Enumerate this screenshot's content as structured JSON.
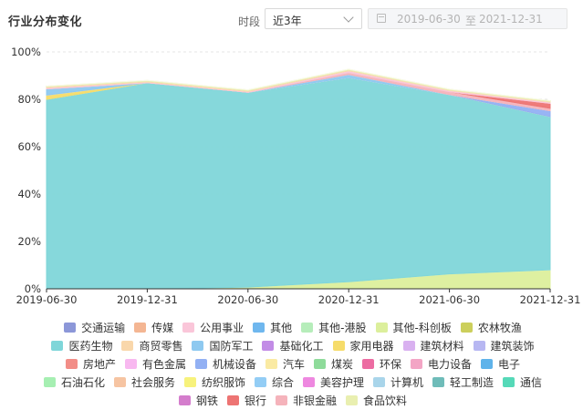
{
  "header": {
    "title": "行业分布变化",
    "period_label": "时段",
    "period_value": "近3年",
    "start_date": "2019-06-30",
    "separator": "至",
    "end_date": "2021-12-31"
  },
  "chart_data": {
    "type": "area",
    "stacked": true,
    "x": [
      "2019-06-30",
      "2019-12-31",
      "2020-06-30",
      "2020-12-31",
      "2021-06-30",
      "2021-12-31"
    ],
    "x_ticks": [
      "2019-06-30",
      "2019-12-31",
      "2020-06-30",
      "2020-12-31",
      "2021-06-30",
      "2021-12-31"
    ],
    "ylim": [
      0,
      100
    ],
    "y_ticks": [
      "0%",
      "20%",
      "40%",
      "60%",
      "80%",
      "100%"
    ],
    "grid": true,
    "legend_position": "bottom",
    "series": [
      {
        "name": "其他-科创板",
        "color": "#dcef9c",
        "values": [
          0,
          0,
          0.7,
          3,
          6.3,
          8
        ]
      },
      {
        "name": "医药生物",
        "color": "#7fd6d9",
        "values": [
          80,
          87,
          82.3,
          86.2,
          75.7,
          64.7
        ]
      },
      {
        "name": "家用电器",
        "color": "#f6dc6a",
        "values": [
          1.8,
          0,
          0,
          0,
          0,
          0
        ]
      },
      {
        "name": "机械设备",
        "color": "#92b0f3",
        "values": [
          0,
          0,
          0,
          0,
          0,
          2.5
        ]
      },
      {
        "name": "国防军工",
        "color": "#8ec9f0",
        "values": [
          2.6,
          0,
          0,
          1.3,
          0,
          0
        ]
      },
      {
        "name": "非银金融",
        "color": "#f5b3bb",
        "values": [
          0,
          0,
          0,
          0.8,
          1.2,
          1
        ]
      },
      {
        "name": "银行",
        "color": "#ed7473",
        "values": [
          0,
          0,
          0,
          0,
          0,
          2.1
        ]
      },
      {
        "name": "公用事业",
        "color": "#fac6d9",
        "values": [
          0.5,
          0.3,
          0.3,
          0.7,
          0.5,
          0.5
        ]
      },
      {
        "name": "商贸零售",
        "color": "#f9d7ab",
        "values": [
          0.4,
          0.4,
          0.4,
          0.4,
          0.3,
          0.3
        ]
      },
      {
        "name": "食品饮料",
        "color": "#e9efb0",
        "values": [
          0.3,
          0.3,
          0.3,
          0.3,
          0.3,
          0.3
        ]
      },
      {
        "name": "交通运输",
        "color": "#8c97d8",
        "values": [
          0,
          0,
          0,
          0,
          0,
          0
        ]
      },
      {
        "name": "传媒",
        "color": "#f4b693",
        "values": [
          0,
          0,
          0,
          0,
          0,
          0
        ]
      },
      {
        "name": "其他",
        "color": "#6fb7ee",
        "values": [
          0,
          0,
          0,
          0,
          0,
          0
        ]
      },
      {
        "name": "其他-港股",
        "color": "#b6edba",
        "values": [
          0,
          0,
          0,
          0,
          0,
          0
        ]
      },
      {
        "name": "农林牧渔",
        "color": "#cccf5c",
        "values": [
          0,
          0,
          0,
          0,
          0,
          0
        ]
      },
      {
        "name": "基础化工",
        "color": "#c28ce6",
        "values": [
          0,
          0,
          0,
          0,
          0,
          0
        ]
      },
      {
        "name": "建筑材料",
        "color": "#d9b1f0",
        "values": [
          0,
          0,
          0,
          0,
          0,
          0
        ]
      },
      {
        "name": "建筑装饰",
        "color": "#b7b7f2",
        "values": [
          0,
          0,
          0,
          0,
          0,
          0
        ]
      },
      {
        "name": "房地产",
        "color": "#f28d87",
        "values": [
          0,
          0,
          0,
          0,
          0,
          0
        ]
      },
      {
        "name": "有色金属",
        "color": "#f8b8f0",
        "values": [
          0,
          0,
          0,
          0,
          0,
          0
        ]
      },
      {
        "name": "汽车",
        "color": "#faeaa3",
        "values": [
          0,
          0,
          0,
          0,
          0,
          0
        ]
      },
      {
        "name": "煤炭",
        "color": "#8edb9a",
        "values": [
          0,
          0,
          0,
          0,
          0,
          0
        ]
      },
      {
        "name": "环保",
        "color": "#ec6ca2",
        "values": [
          0,
          0,
          0,
          0,
          0,
          0
        ]
      },
      {
        "name": "电力设备",
        "color": "#f3a5c5",
        "values": [
          0,
          0,
          0,
          0,
          0,
          0
        ]
      },
      {
        "name": "电子",
        "color": "#5fb3ea",
        "values": [
          0,
          0,
          0,
          0,
          0,
          0
        ]
      },
      {
        "name": "石油石化",
        "color": "#a6efb2",
        "values": [
          0,
          0,
          0,
          0,
          0,
          0
        ]
      },
      {
        "name": "社会服务",
        "color": "#f6c4a2",
        "values": [
          0,
          0,
          0,
          0,
          0,
          0
        ]
      },
      {
        "name": "纺织服饰",
        "color": "#f7f27c",
        "values": [
          0,
          0,
          0,
          0,
          0,
          0
        ]
      },
      {
        "name": "综合",
        "color": "#93cdf5",
        "values": [
          0,
          0,
          0,
          0,
          0,
          0
        ]
      },
      {
        "name": "美容护理",
        "color": "#ee88e0",
        "values": [
          0,
          0,
          0,
          0,
          0,
          0
        ]
      },
      {
        "name": "计算机",
        "color": "#a9d5ea",
        "values": [
          0,
          0,
          0,
          0,
          0,
          0
        ]
      },
      {
        "name": "轻工制造",
        "color": "#6fbcb9",
        "values": [
          0,
          0,
          0,
          0,
          0,
          0
        ]
      },
      {
        "name": "通信",
        "color": "#56d9b8",
        "values": [
          0,
          0,
          0,
          0,
          0,
          0
        ]
      },
      {
        "name": "钢铁",
        "color": "#d47dcc",
        "values": [
          0,
          0,
          0,
          0,
          0,
          0
        ]
      }
    ]
  },
  "legend": {
    "rows": [
      [
        {
          "name": "交通运输",
          "color": "#8c97d8"
        },
        {
          "name": "传媒",
          "color": "#f4b693"
        },
        {
          "name": "公用事业",
          "color": "#fac6d9"
        },
        {
          "name": "其他",
          "color": "#6fb7ee"
        },
        {
          "name": "其他-港股",
          "color": "#b6edba"
        },
        {
          "name": "其他-科创板",
          "color": "#dcef9c"
        },
        {
          "name": "农林牧渔",
          "color": "#cccf5c"
        }
      ],
      [
        {
          "name": "医药生物",
          "color": "#7fd6d9"
        },
        {
          "name": "商贸零售",
          "color": "#f9d7ab"
        },
        {
          "name": "国防军工",
          "color": "#8ec9f0"
        },
        {
          "name": "基础化工",
          "color": "#c28ce6"
        },
        {
          "name": "家用电器",
          "color": "#f6dc6a"
        },
        {
          "name": "建筑材料",
          "color": "#d9b1f0"
        },
        {
          "name": "建筑装饰",
          "color": "#b7b7f2"
        }
      ],
      [
        {
          "name": "房地产",
          "color": "#f28d87"
        },
        {
          "name": "有色金属",
          "color": "#f8b8f0"
        },
        {
          "name": "机械设备",
          "color": "#92b0f3"
        },
        {
          "name": "汽车",
          "color": "#faeaa3"
        },
        {
          "name": "煤炭",
          "color": "#8edb9a"
        },
        {
          "name": "环保",
          "color": "#ec6ca2"
        },
        {
          "name": "电力设备",
          "color": "#f3a5c5"
        },
        {
          "name": "电子",
          "color": "#5fb3ea"
        }
      ],
      [
        {
          "name": "石油石化",
          "color": "#a6efb2"
        },
        {
          "name": "社会服务",
          "color": "#f6c4a2"
        },
        {
          "name": "纺织服饰",
          "color": "#f7f27c"
        },
        {
          "name": "综合",
          "color": "#93cdf5"
        },
        {
          "name": "美容护理",
          "color": "#ee88e0"
        },
        {
          "name": "计算机",
          "color": "#a9d5ea"
        },
        {
          "name": "轻工制造",
          "color": "#6fbcb9"
        },
        {
          "name": "通信",
          "color": "#56d9b8"
        }
      ],
      [
        {
          "name": "钢铁",
          "color": "#d47dcc"
        },
        {
          "name": "银行",
          "color": "#ed7473"
        },
        {
          "name": "非银金融",
          "color": "#f5b3bb"
        },
        {
          "name": "食品饮料",
          "color": "#e9efb0"
        }
      ]
    ]
  }
}
